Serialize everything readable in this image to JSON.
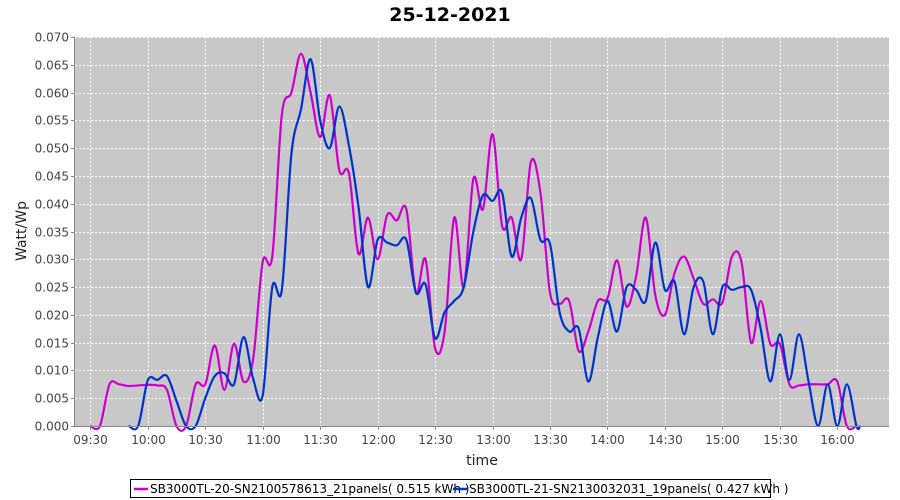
{
  "chart_data": {
    "type": "line",
    "title": "25-12-2021",
    "xlabel": "time",
    "ylabel": "Watt/Wp",
    "x_ticks": [
      "09:30",
      "10:00",
      "10:30",
      "11:00",
      "11:30",
      "12:00",
      "12:30",
      "13:00",
      "13:30",
      "14:00",
      "14:30",
      "15:00",
      "15:30",
      "16:00"
    ],
    "y_ticks": [
      "0.000",
      "0.005",
      "0.010",
      "0.015",
      "0.020",
      "0.025",
      "0.030",
      "0.035",
      "0.040",
      "0.045",
      "0.050",
      "0.055",
      "0.060",
      "0.065",
      "0.070"
    ],
    "xlim": [
      "09:22",
      "16:27"
    ],
    "ylim": [
      0,
      0.07
    ],
    "grid": true,
    "legend_position": "bottom",
    "colors": {
      "plot_background": "#c8c8c8",
      "grid": "#ffffff"
    },
    "series": [
      {
        "name": "SB3000TL-20-SN2100578613_21panels( 0.515 kWh )",
        "color": "#cc00cc",
        "points": [
          [
            "09:30",
            0.0
          ],
          [
            "09:35",
            0.0
          ],
          [
            "09:40",
            0.0075
          ],
          [
            "09:45",
            0.0075
          ],
          [
            "09:50",
            0.0072
          ],
          [
            "09:55",
            0.0073
          ],
          [
            "10:00",
            0.0074
          ],
          [
            "10:05",
            0.0073
          ],
          [
            "10:10",
            0.0065
          ],
          [
            "10:15",
            0.0
          ],
          [
            "10:20",
            0.0
          ],
          [
            "10:25",
            0.0075
          ],
          [
            "10:30",
            0.0075
          ],
          [
            "10:35",
            0.0145
          ],
          [
            "10:40",
            0.0065
          ],
          [
            "10:45",
            0.0148
          ],
          [
            "10:50",
            0.008
          ],
          [
            "10:55",
            0.012
          ],
          [
            "11:00",
            0.0295
          ],
          [
            "11:05",
            0.0305
          ],
          [
            "11:10",
            0.056
          ],
          [
            "11:15",
            0.06
          ],
          [
            "11:20",
            0.067
          ],
          [
            "11:25",
            0.06
          ],
          [
            "11:30",
            0.052
          ],
          [
            "11:35",
            0.0595
          ],
          [
            "11:40",
            0.046
          ],
          [
            "11:45",
            0.0455
          ],
          [
            "11:50",
            0.031
          ],
          [
            "11:55",
            0.0375
          ],
          [
            "12:00",
            0.03
          ],
          [
            "12:05",
            0.038
          ],
          [
            "12:10",
            0.037
          ],
          [
            "12:15",
            0.039
          ],
          [
            "12:20",
            0.024
          ],
          [
            "12:25",
            0.03
          ],
          [
            "12:30",
            0.014
          ],
          [
            "12:35",
            0.017
          ],
          [
            "12:40",
            0.0375
          ],
          [
            "12:45",
            0.025
          ],
          [
            "12:50",
            0.0445
          ],
          [
            "12:55",
            0.039
          ],
          [
            "13:00",
            0.0525
          ],
          [
            "13:05",
            0.036
          ],
          [
            "13:10",
            0.0375
          ],
          [
            "13:15",
            0.03
          ],
          [
            "13:20",
            0.0475
          ],
          [
            "13:25",
            0.042
          ],
          [
            "13:30",
            0.024
          ],
          [
            "13:35",
            0.022
          ],
          [
            "13:40",
            0.0225
          ],
          [
            "13:45",
            0.0135
          ],
          [
            "13:50",
            0.017
          ],
          [
            "13:55",
            0.0225
          ],
          [
            "14:00",
            0.023
          ],
          [
            "14:05",
            0.0298
          ],
          [
            "14:10",
            0.0215
          ],
          [
            "14:15",
            0.027
          ],
          [
            "14:20",
            0.0375
          ],
          [
            "14:25",
            0.0235
          ],
          [
            "14:30",
            0.02
          ],
          [
            "14:35",
            0.0275
          ],
          [
            "14:40",
            0.0305
          ],
          [
            "14:45",
            0.0265
          ],
          [
            "14:50",
            0.022
          ],
          [
            "14:55",
            0.0228
          ],
          [
            "15:00",
            0.0222
          ],
          [
            "15:05",
            0.0305
          ],
          [
            "15:10",
            0.0295
          ],
          [
            "15:15",
            0.015
          ],
          [
            "15:20",
            0.0225
          ],
          [
            "15:25",
            0.0148
          ],
          [
            "15:30",
            0.0148
          ],
          [
            "15:35",
            0.0075
          ],
          [
            "15:40",
            0.0073
          ],
          [
            "15:45",
            0.0075
          ],
          [
            "15:50",
            0.0075
          ],
          [
            "15:55",
            0.0075
          ],
          [
            "16:00",
            0.008
          ],
          [
            "16:05",
            0.0
          ],
          [
            "16:10",
            0.0
          ]
        ]
      },
      {
        "name": "SB3000TL-21-SN2130032031_19panels( 0.427 kWh )",
        "color": "#0033cc",
        "points": [
          [
            "09:50",
            0.0
          ],
          [
            "09:55",
            0.0
          ],
          [
            "10:00",
            0.0082
          ],
          [
            "10:05",
            0.0083
          ],
          [
            "10:10",
            0.009
          ],
          [
            "10:15",
            0.0045
          ],
          [
            "10:20",
            0.0
          ],
          [
            "10:25",
            0.0
          ],
          [
            "10:30",
            0.005
          ],
          [
            "10:35",
            0.009
          ],
          [
            "10:40",
            0.0095
          ],
          [
            "10:45",
            0.0075
          ],
          [
            "10:50",
            0.016
          ],
          [
            "10:55",
            0.0085
          ],
          [
            "11:00",
            0.0055
          ],
          [
            "11:05",
            0.025
          ],
          [
            "11:10",
            0.0245
          ],
          [
            "11:15",
            0.049
          ],
          [
            "11:20",
            0.057
          ],
          [
            "11:25",
            0.066
          ],
          [
            "11:30",
            0.055
          ],
          [
            "11:35",
            0.05
          ],
          [
            "11:40",
            0.0575
          ],
          [
            "11:45",
            0.0505
          ],
          [
            "11:50",
            0.0395
          ],
          [
            "11:55",
            0.025
          ],
          [
            "12:00",
            0.0335
          ],
          [
            "12:05",
            0.033
          ],
          [
            "12:10",
            0.0325
          ],
          [
            "12:15",
            0.0335
          ],
          [
            "12:20",
            0.024
          ],
          [
            "12:25",
            0.0255
          ],
          [
            "12:30",
            0.0158
          ],
          [
            "12:35",
            0.0205
          ],
          [
            "12:40",
            0.0225
          ],
          [
            "12:45",
            0.025
          ],
          [
            "12:50",
            0.035
          ],
          [
            "12:55",
            0.0415
          ],
          [
            "13:00",
            0.0405
          ],
          [
            "13:05",
            0.042
          ],
          [
            "13:10",
            0.0305
          ],
          [
            "13:15",
            0.0375
          ],
          [
            "13:20",
            0.041
          ],
          [
            "13:25",
            0.0335
          ],
          [
            "13:30",
            0.0328
          ],
          [
            "13:35",
            0.0205
          ],
          [
            "13:40",
            0.017
          ],
          [
            "13:45",
            0.0175
          ],
          [
            "13:50",
            0.008
          ],
          [
            "13:55",
            0.016
          ],
          [
            "14:00",
            0.0225
          ],
          [
            "14:05",
            0.017
          ],
          [
            "14:10",
            0.025
          ],
          [
            "14:15",
            0.0245
          ],
          [
            "14:20",
            0.0225
          ],
          [
            "14:25",
            0.033
          ],
          [
            "14:30",
            0.0245
          ],
          [
            "14:35",
            0.026
          ],
          [
            "14:40",
            0.0165
          ],
          [
            "14:45",
            0.025
          ],
          [
            "14:50",
            0.026
          ],
          [
            "14:55",
            0.0165
          ],
          [
            "15:00",
            0.025
          ],
          [
            "15:05",
            0.0245
          ],
          [
            "15:10",
            0.025
          ],
          [
            "15:15",
            0.0245
          ],
          [
            "15:20",
            0.0175
          ],
          [
            "15:25",
            0.008
          ],
          [
            "15:30",
            0.0165
          ],
          [
            "15:35",
            0.0083
          ],
          [
            "15:40",
            0.0165
          ],
          [
            "15:45",
            0.008
          ],
          [
            "15:50",
            0.0
          ],
          [
            "15:55",
            0.0075
          ],
          [
            "16:00",
            0.0
          ],
          [
            "16:05",
            0.0075
          ],
          [
            "16:10",
            0.0
          ],
          [
            "16:12",
            0.0
          ]
        ]
      }
    ]
  }
}
